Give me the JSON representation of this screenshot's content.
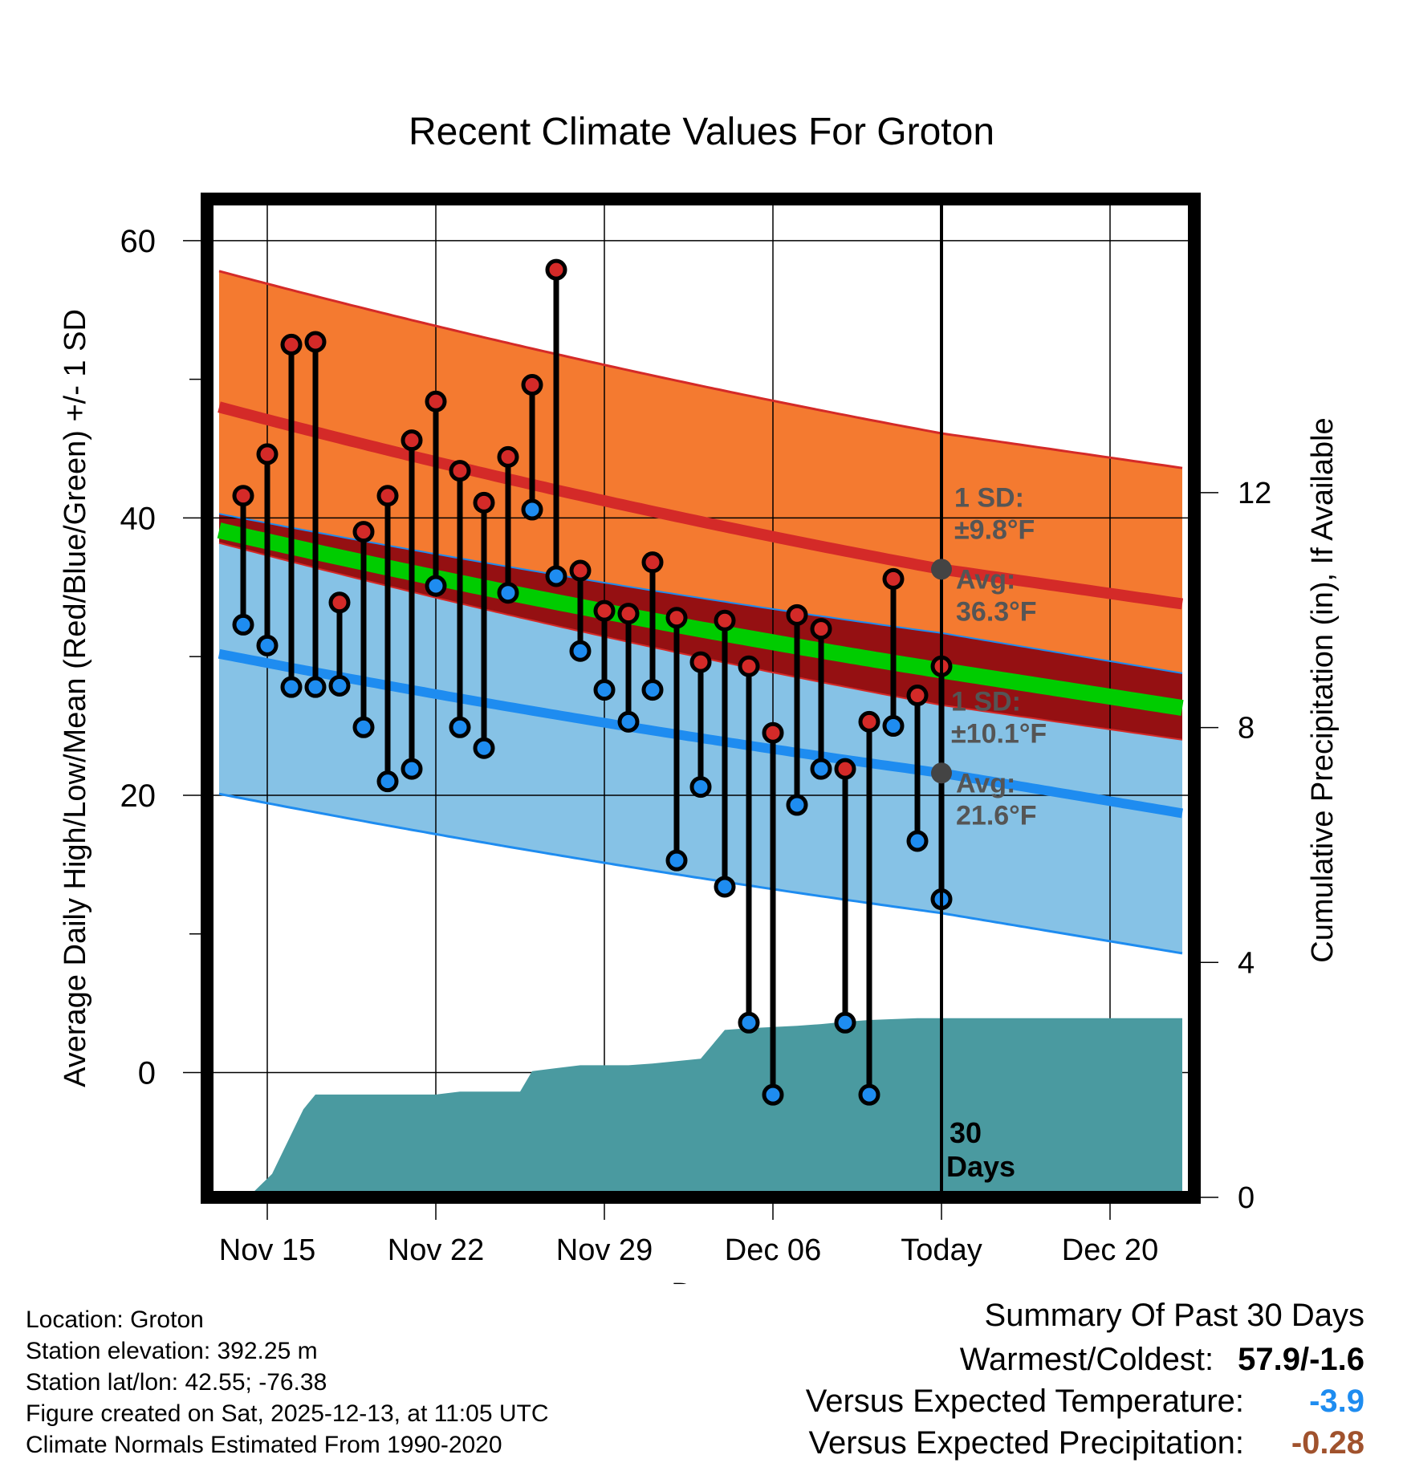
{
  "chart_data": {
    "type": "line",
    "title": "Recent Climate Values For Groton",
    "xlabel": "Day",
    "ylabel": "Average Daily High/Low/Mean (Red/Blue/Green) +/- 1 SD",
    "y2label": "Cumulative Precipitation (in), If Available",
    "x_ticks": [
      "Nov 15",
      "Nov 22",
      "Nov 29",
      "Dec 06",
      "Today",
      "Dec 20"
    ],
    "x_tick_days": [
      2,
      9,
      16,
      23,
      30,
      37
    ],
    "x_range": [
      -0.5,
      40.5
    ],
    "y_range": [
      -9,
      63
    ],
    "y_ticks": [
      0,
      20,
      40,
      60
    ],
    "y2_range": [
      0,
      17
    ],
    "y2_ticks": [
      0,
      4,
      8,
      12
    ],
    "normals": {
      "high_avg": {
        "start": 48.0,
        "today": 36.3,
        "end": 33.8
      },
      "high_sd": 9.8,
      "low_avg": {
        "start": 30.2,
        "today": 21.6,
        "end": 18.7
      },
      "low_sd": 10.1,
      "mean_avg": {
        "start": 39.1,
        "today": 29.0,
        "end": 26.3
      }
    },
    "days": [
      1,
      2,
      3,
      4,
      5,
      6,
      7,
      8,
      9,
      10,
      11,
      12,
      13,
      14,
      15,
      16,
      17,
      18,
      19,
      20,
      21,
      22,
      23,
      24,
      25,
      26,
      27,
      28,
      29,
      30
    ],
    "highs": [
      41.6,
      44.6,
      52.5,
      52.7,
      33.9,
      39.0,
      41.6,
      45.6,
      48.4,
      43.4,
      41.1,
      44.4,
      49.6,
      57.9,
      36.2,
      33.3,
      33.1,
      36.8,
      32.8,
      29.6,
      32.6,
      29.3,
      24.5,
      33.0,
      32.0,
      21.9,
      25.3,
      35.6,
      27.2,
      29.3
    ],
    "lows": [
      32.3,
      30.8,
      27.8,
      27.8,
      27.9,
      24.9,
      21.0,
      21.9,
      35.1,
      24.9,
      23.4,
      34.6,
      40.6,
      35.8,
      30.4,
      27.6,
      25.3,
      27.6,
      15.3,
      20.6,
      13.4,
      3.6,
      -1.6,
      19.3,
      21.9,
      3.6,
      -1.6,
      25.0,
      16.7,
      12.5
    ],
    "precip_x": [
      1.2,
      2.2,
      3.5,
      4.0,
      4.2,
      8.0,
      9.0,
      10.0,
      11.0,
      12.5,
      13.0,
      14.0,
      15.0,
      17.0,
      18.0,
      19.0,
      20.0,
      21.0,
      22.0,
      24.0,
      25.0,
      26.0,
      27.0,
      29.0,
      30.0,
      40.0
    ],
    "precip_y": [
      0,
      0.4,
      1.5,
      1.75,
      1.75,
      1.75,
      1.75,
      1.8,
      1.8,
      1.8,
      2.15,
      2.2,
      2.25,
      2.25,
      2.28,
      2.32,
      2.36,
      2.85,
      2.88,
      2.92,
      2.95,
      2.99,
      3.02,
      3.05,
      3.05,
      3.05
    ],
    "annotations": {
      "high_sd_label": "1 SD:",
      "high_sd_value": "±9.8°F",
      "high_avg_label": "Avg:",
      "high_avg_value": "36.3°F",
      "low_sd_label": "1 SD:",
      "low_sd_value": "±10.1°F",
      "low_avg_label": "Avg:",
      "low_avg_value": "21.6°F",
      "period_line1": "30",
      "period_line2": "Days"
    },
    "colors": {
      "high_band": "#f47a30",
      "high_line": "#d42a28",
      "low_band": "#86c2e6",
      "low_line": "#1e8cf0",
      "overlap_band": "#951012",
      "mean_line": "#00cc00",
      "precip": "#4a9aa0",
      "high_dot": "#d42a28",
      "low_dot": "#1e8cf0",
      "label_gray": "#555555",
      "today_dot": "#444444"
    }
  },
  "footer": {
    "location": "Location: Groton",
    "elevation": "Station elevation: 392.25 m",
    "latlon": "Station lat/lon: 42.55; -76.38",
    "created": "Figure created on Sat, 2025-12-13, at 11:05 UTC",
    "normals": "Climate Normals Estimated From 1990-2020"
  },
  "summary": {
    "title": "Summary Of Past 30 Days",
    "warmest_label": "Warmest/Coldest:",
    "warmest_value": "57.9/-1.6",
    "temp_label": "Versus Expected Temperature:",
    "temp_value": "-3.9",
    "temp_color": "#1e8cf0",
    "precip_label": "Versus Expected Precipitation:",
    "precip_value": "-0.28",
    "precip_color": "#a0522d"
  }
}
